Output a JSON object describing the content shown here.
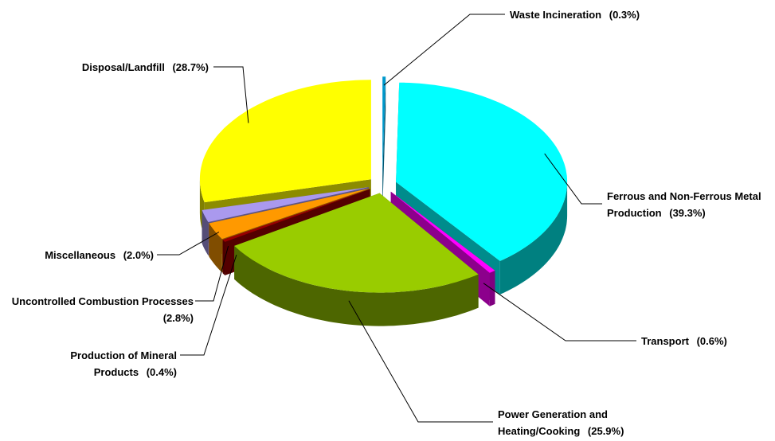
{
  "chart_data": {
    "type": "pie3d",
    "categories": [
      "Waste Incineration",
      "Ferrous and Non-Ferrous Metal Production",
      "Transport",
      "Power Generation and Heating/Cooking",
      "Production of Mineral Products",
      "Uncontrolled Combustion Processes",
      "Miscellaneous",
      "Disposal/Landfill"
    ],
    "values": [
      0.3,
      39.3,
      0.6,
      25.9,
      0.4,
      2.8,
      2.0,
      28.7
    ],
    "value_labels": [
      "(0.3%)",
      "(39.3%)",
      "(0.6%)",
      "(25.9%)",
      "(0.4%)",
      "(2.8%)",
      "(2.0%)",
      "(28.7%)"
    ],
    "colors": [
      "#0099cc",
      "#00ffff",
      "#ff00ff",
      "#99cc00",
      "#990000",
      "#ff9900",
      "#aa99ee",
      "#ffff00"
    ]
  }
}
